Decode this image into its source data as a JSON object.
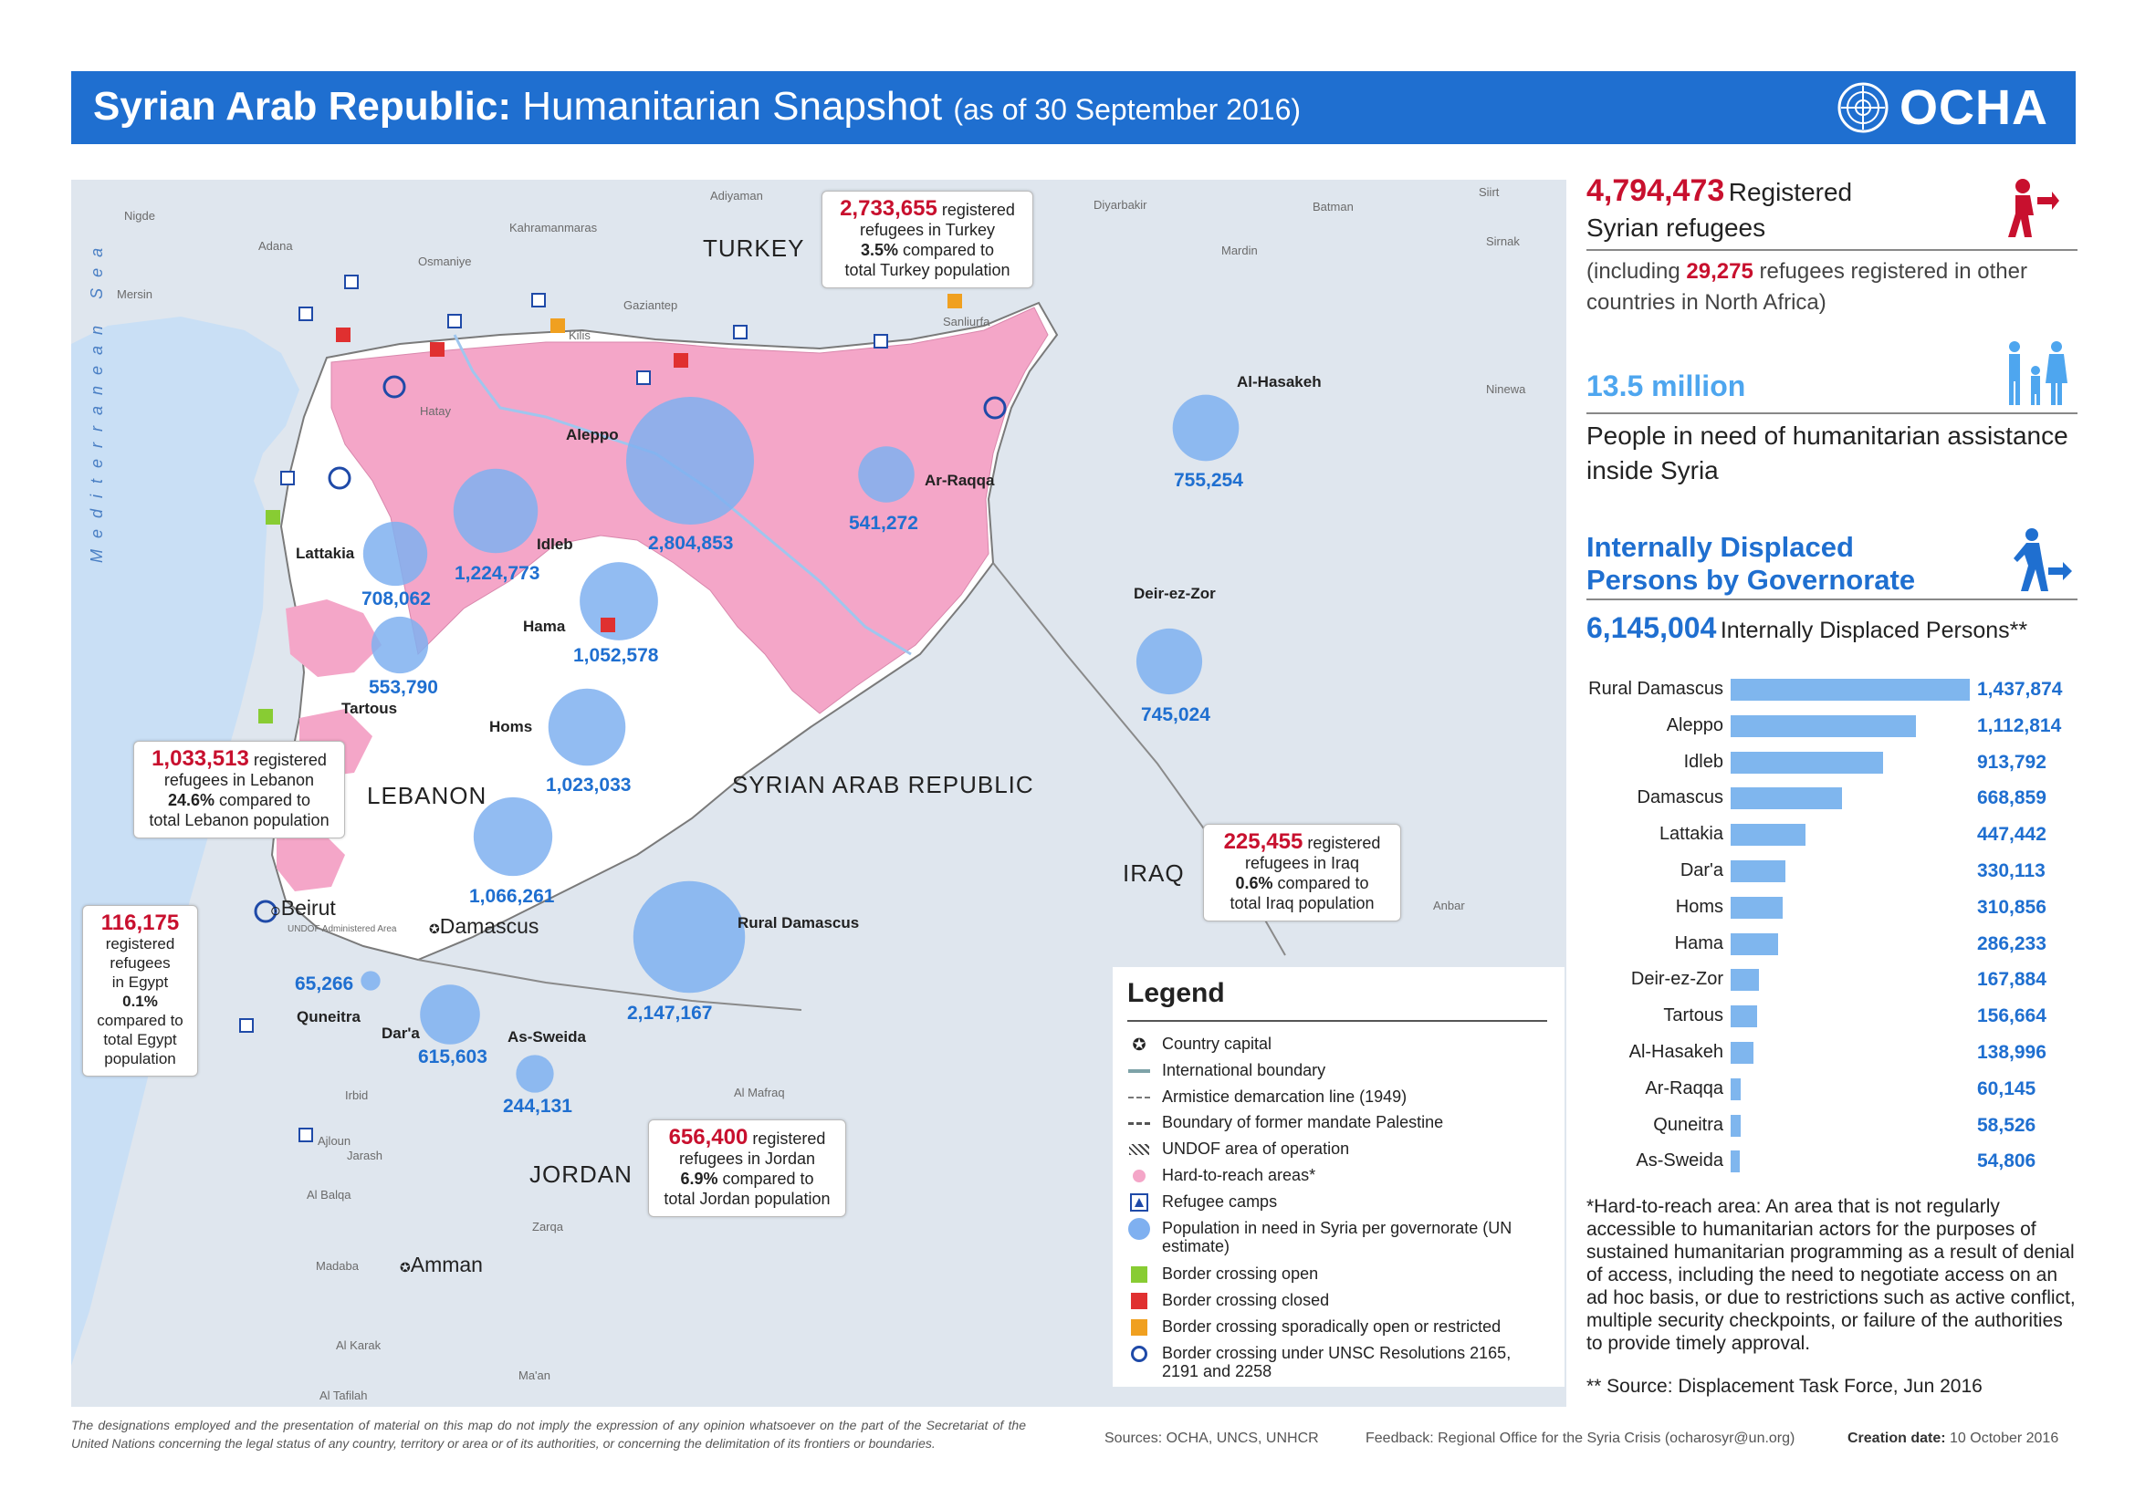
{
  "banner": {
    "title_strong": "Syrian Arab Republic:",
    "title_rest": "Humanitarian Snapshot",
    "date": "(as of 30 September 2016)",
    "logo_text": "OCHA",
    "color": "#1f6fd0"
  },
  "map": {
    "countries": [
      "TURKEY",
      "LEBANON",
      "SYRIAN ARAB REPUBLIC",
      "IRAQ",
      "JORDAN"
    ],
    "sea": "Mediterranean Sea",
    "places": [
      "Nigde",
      "Adana",
      "Mersin",
      "Osmaniye",
      "Kahramanmaras",
      "Adiyaman",
      "Gaziantep",
      "Kilis",
      "Sanliurfa",
      "Diyarbakir",
      "Mardin",
      "Batman",
      "Siirt",
      "Sirnak",
      "Hatay",
      "Ninewa",
      "Anbar",
      "Al Mafraq",
      "Irbid",
      "Ajloun",
      "Jarash",
      "Al Balqa",
      "Zarqa",
      "Madaba",
      "Al Karak",
      "Ma'an",
      "Al Tafilah",
      "UNDOF Administered Area"
    ],
    "capitals": [
      "Beirut",
      "Damascus",
      "Amman"
    ],
    "governorates": [
      {
        "name": "Aleppo",
        "value": "2,804,853"
      },
      {
        "name": "Idleb",
        "value": "1,224,773"
      },
      {
        "name": "Lattakia",
        "value": "708,062"
      },
      {
        "name": "Tartous",
        "value": "553,790"
      },
      {
        "name": "Hama",
        "value": "1,052,578"
      },
      {
        "name": "Homs",
        "value": "1,023,033"
      },
      {
        "name": "Ar-Raqqa",
        "value": "541,272"
      },
      {
        "name": "Al-Hasakeh",
        "value": "755,254"
      },
      {
        "name": "Deir-ez-Zor",
        "value": "745,024"
      },
      {
        "name": "Damascus",
        "value": "1,066,261"
      },
      {
        "name": "Rural Damascus",
        "value": "2,147,167"
      },
      {
        "name": "Quneitra",
        "value": "65,266"
      },
      {
        "name": "Dar'a",
        "value": "615,603"
      },
      {
        "name": "As-Sweida",
        "value": "244,131"
      }
    ],
    "callouts": {
      "turkey": {
        "num": "2,733,655",
        "l1": "registered",
        "l2": "refugees in Turkey",
        "pct": "3.5%",
        "l3": "compared to",
        "l4": "total Turkey population"
      },
      "lebanon": {
        "num": "1,033,513",
        "l1": "registered",
        "l2": "refugees in Lebanon",
        "pct": "24.6%",
        "l3": "compared to",
        "l4": "total Lebanon population"
      },
      "iraq": {
        "num": "225,455",
        "l1": "registered",
        "l2": "refugees in Iraq",
        "pct": "0.6%",
        "l3": "compared to",
        "l4": "total Iraq population"
      },
      "jordan": {
        "num": "656,400",
        "l1": "registered",
        "l2": "refugees in Jordan",
        "pct": "6.9%",
        "l3": "compared to",
        "l4": "total Jordan population"
      },
      "egypt": {
        "num": "116,175",
        "l1": "registered",
        "l2": "refugees",
        "l3": "in Egypt",
        "pct": "0.1%",
        "l4": "compared to",
        "l5": "total Egypt",
        "l6": "population"
      }
    },
    "hard_to_reach_color": "#f4a6c8",
    "circle_color": "#7fb0f0"
  },
  "legend": {
    "title": "Legend",
    "items": [
      "Country capital",
      "International boundary",
      "Armistice demarcation  line (1949)",
      "Boundary of former mandate Palestine",
      "UNDOF area of operation",
      "Hard-to-reach areas*",
      "Refugee camps",
      "Population in need in Syria per governorate (UN estimate)",
      "Border crossing open",
      "Border crossing closed",
      "Border crossing sporadically open or restricted",
      "Border crossing under UNSC Resolutions 2165, 2191 and 2258"
    ]
  },
  "sidebar": {
    "refugees_num": "4,794,473",
    "refugees_l1": "Registered",
    "refugees_l2": "Syrian refugees",
    "other_pre": "(including",
    "other_num": "29,275",
    "other_post": "refugees registered in other",
    "other_l2": "countries in North Africa)",
    "pin_num": "13.5 million",
    "pin_l1": "People in need of humanitarian assistance",
    "pin_l2": "inside Syria",
    "idp_title_l1": "Internally Displaced",
    "idp_title_l2": "Persons by Governorate",
    "idp_num": "6,145,004",
    "idp_label": "Internally Displaced Persons**"
  },
  "idp_bars": [
    {
      "label": "Rural Damascus",
      "value": 1437874,
      "text": "1,437,874"
    },
    {
      "label": "Aleppo",
      "value": 1112814,
      "text": "1,112,814"
    },
    {
      "label": "Idleb",
      "value": 913792,
      "text": "913,792"
    },
    {
      "label": "Damascus",
      "value": 668859,
      "text": "668,859"
    },
    {
      "label": "Lattakia",
      "value": 447442,
      "text": "447,442"
    },
    {
      "label": "Dar'a",
      "value": 330113,
      "text": "330,113"
    },
    {
      "label": "Homs",
      "value": 310856,
      "text": "310,856"
    },
    {
      "label": "Hama",
      "value": 286233,
      "text": "286,233"
    },
    {
      "label": "Deir-ez-Zor",
      "value": 167884,
      "text": "167,884"
    },
    {
      "label": "Tartous",
      "value": 156664,
      "text": "156,664"
    },
    {
      "label": "Al-Hasakeh",
      "value": 138996,
      "text": "138,996"
    },
    {
      "label": "Ar-Raqqa",
      "value": 60145,
      "text": "60,145"
    },
    {
      "label": "Quneitra",
      "value": 58526,
      "text": "58,526"
    },
    {
      "label": "As-Sweida",
      "value": 54806,
      "text": "54,806"
    }
  ],
  "footnote": "*Hard-to-reach area: An area that is not regularly accessible to humanitarian actors for the purposes of sustained humanitarian programming as a result of denial of access, including the need to negotiate access on an ad hoc basis, or due to restrictions such as active conflict, multiple security checkpoints, or failure of the authorities to provide timely approval.",
  "source_note": "** Source: Displacement Task Force, Jun 2016",
  "footer": {
    "disclaimer": "The designations employed and the presentation of material on this map do not imply the expression of any opinion whatsoever on the part of the Secretariat of the United Nations concerning the legal status of any country, territory or area or of its authorities, or concerning the delimitation of its frontiers or boundaries.",
    "sources": "Sources: OCHA, UNCS, UNHCR",
    "feedback": "Feedback: Regional Office for the Syria Crisis (ocharosyr@un.org)",
    "creation_label": "Creation date:",
    "creation_date": "10 October 2016"
  }
}
